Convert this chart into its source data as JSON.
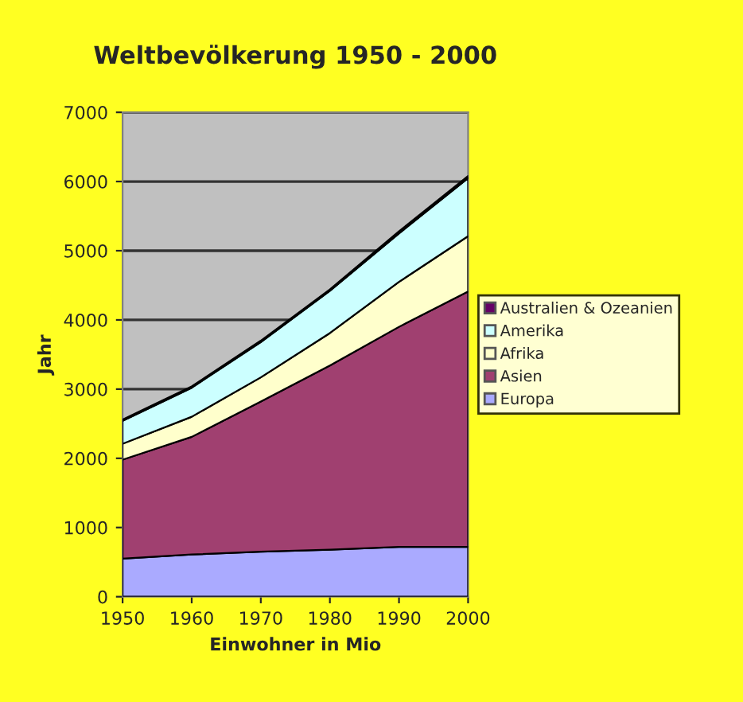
{
  "chart_data": {
    "type": "area",
    "stacked": true,
    "title": "Weltbevölkerung 1950 - 2000",
    "xlabel": "Einwohner in Mio",
    "ylabel": "Jahr",
    "x": [
      1950,
      1960,
      1970,
      1980,
      1990,
      2000
    ],
    "series": [
      {
        "name": "Europa",
        "color": "#aaaaff",
        "values": [
          550,
          610,
          650,
          680,
          720,
          720
        ]
      },
      {
        "name": "Asien",
        "color": "#a04070",
        "values": [
          1430,
          1700,
          2170,
          2660,
          3180,
          3690
        ]
      },
      {
        "name": "Afrika",
        "color": "#ffffcc",
        "values": [
          230,
          290,
          350,
          470,
          650,
          800
        ]
      },
      {
        "name": "Amerika",
        "color": "#ccffff",
        "values": [
          330,
          420,
          510,
          610,
          700,
          840
        ]
      },
      {
        "name": "Australien & Ozeanien",
        "color": "#660066",
        "values": [
          20,
          20,
          20,
          20,
          30,
          30
        ]
      }
    ],
    "xlim": [
      1950,
      2000
    ],
    "xticks": [
      1950,
      1960,
      1970,
      1980,
      1990,
      2000
    ],
    "ylim": [
      0,
      7000
    ],
    "yticks": [
      0,
      1000,
      2000,
      3000,
      4000,
      5000,
      6000,
      7000
    ],
    "grid": "y",
    "legend": "right"
  }
}
